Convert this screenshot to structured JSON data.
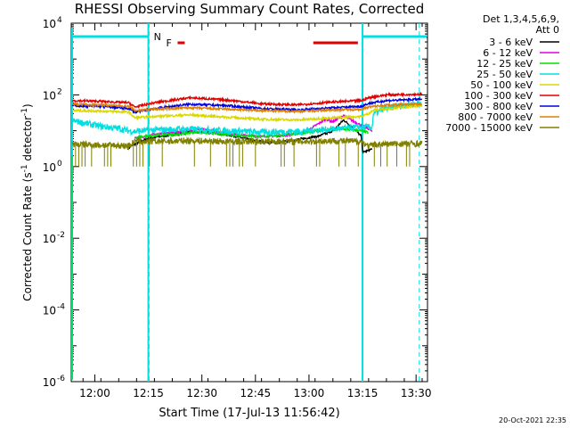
{
  "chart_data": {
    "type": "line",
    "title": "RHESSI Observing Summary Count Rates, Corrected",
    "xlabel": "Start Time (17-Jul-13 11:56:42)",
    "ylabel_parts": [
      "Corrected Count Rate (s",
      "-1",
      " detector",
      "-1",
      ")"
    ],
    "yscale": "log",
    "ylim_exp": [
      -6,
      4
    ],
    "xlim_min": [
      -3.3,
      96.5
    ],
    "x_ticks": [
      {
        "min": 3.3,
        "label": "12:00"
      },
      {
        "min": 18.3,
        "label": "12:15"
      },
      {
        "min": 33.3,
        "label": "12:30"
      },
      {
        "min": 48.3,
        "label": "12:45"
      },
      {
        "min": 63.3,
        "label": "13:00"
      },
      {
        "min": 78.3,
        "label": "13:15"
      },
      {
        "min": 93.3,
        "label": "13:30"
      }
    ],
    "y_ticks": [
      {
        "exp": 4,
        "label": "10",
        "sup": "4"
      },
      {
        "exp": 2,
        "label": "10",
        "sup": "2"
      },
      {
        "exp": 0,
        "label": "10",
        "sup": "0"
      },
      {
        "exp": -2,
        "label": "10",
        "sup": "-2"
      },
      {
        "exp": -4,
        "label": "10",
        "sup": "-4"
      },
      {
        "exp": -6,
        "label": "10",
        "sup": "-6"
      }
    ],
    "legend_header": [
      "Det 1,3,4,5,6,9,",
      "Att 0"
    ],
    "series": [
      {
        "name": "3 - 6 keV",
        "color": "#000000",
        "segments": [
          [
            12.6,
            0.5
          ],
          [
            14,
            0.6
          ],
          [
            18,
            0.78
          ],
          [
            24,
            0.88
          ],
          [
            30,
            0.96
          ],
          [
            36,
            0.95
          ],
          [
            42,
            0.86
          ],
          [
            48,
            0.72
          ],
          [
            54,
            0.66
          ],
          [
            60,
            0.75
          ],
          [
            66,
            0.85
          ],
          [
            70,
            1.0
          ],
          [
            73,
            1.3
          ],
          [
            76,
            1.05
          ],
          [
            77.9,
            0.85
          ],
          [
            78.4,
            0.4
          ],
          [
            80,
            0.45
          ],
          [
            81,
            0.5
          ]
        ]
      },
      {
        "name": "6 - 12 keV",
        "color": "#e000e0",
        "segments": [
          [
            14.5,
            0.78
          ],
          [
            20,
            0.9
          ],
          [
            26,
            0.96
          ],
          [
            32,
            1.05
          ],
          [
            38,
            0.98
          ],
          [
            44,
            0.88
          ],
          [
            50,
            0.84
          ],
          [
            56,
            0.86
          ],
          [
            62,
            0.95
          ],
          [
            66,
            1.2
          ],
          [
            68,
            1.32
          ],
          [
            70,
            1.25
          ],
          [
            73,
            1.42
          ],
          [
            76,
            1.25
          ],
          [
            80,
            1.05
          ],
          [
            81,
            0.98
          ]
        ]
      },
      {
        "name": "12 - 25 keV",
        "color": "#00e000",
        "segments": [
          [
            14.5,
            0.82
          ],
          [
            20,
            0.86
          ],
          [
            26,
            0.9
          ],
          [
            32,
            0.96
          ],
          [
            38,
            0.92
          ],
          [
            44,
            0.86
          ],
          [
            50,
            0.84
          ],
          [
            56,
            0.88
          ],
          [
            62,
            0.94
          ],
          [
            66,
            1.0
          ],
          [
            72,
            1.05
          ],
          [
            78,
            1.0
          ],
          [
            80,
            0.95
          ]
        ]
      },
      {
        "name": "25 - 50 keV",
        "color": "#00e0e0",
        "segments": [
          [
            -3,
            1.28
          ],
          [
            0,
            1.22
          ],
          [
            5,
            1.12
          ],
          [
            10,
            1.06
          ],
          [
            12.8,
            1.0
          ],
          [
            14.5,
            0.98
          ],
          [
            20,
            1.02
          ],
          [
            30,
            1.05
          ],
          [
            40,
            1.0
          ],
          [
            50,
            0.96
          ],
          [
            60,
            0.98
          ],
          [
            70,
            1.05
          ],
          [
            78,
            1.1
          ],
          [
            81,
            1.1
          ],
          [
            81.3,
            1.45
          ],
          [
            84,
            1.6
          ],
          [
            90,
            1.72
          ],
          [
            95,
            1.78
          ]
        ]
      },
      {
        "name": "50 - 100 keV",
        "color": "#d8d800",
        "segments": [
          [
            -3,
            1.56
          ],
          [
            5,
            1.55
          ],
          [
            12.8,
            1.52
          ],
          [
            14.5,
            1.36
          ],
          [
            20,
            1.4
          ],
          [
            30,
            1.44
          ],
          [
            40,
            1.38
          ],
          [
            50,
            1.32
          ],
          [
            60,
            1.3
          ],
          [
            70,
            1.36
          ],
          [
            78,
            1.4
          ],
          [
            80,
            1.48
          ],
          [
            81.5,
            1.58
          ],
          [
            88,
            1.64
          ],
          [
            95,
            1.7
          ]
        ]
      },
      {
        "name": "100 - 300 keV",
        "color": "#e00000",
        "segments": [
          [
            -3,
            1.84
          ],
          [
            5,
            1.82
          ],
          [
            12.8,
            1.78
          ],
          [
            14.5,
            1.66
          ],
          [
            20,
            1.78
          ],
          [
            30,
            1.92
          ],
          [
            40,
            1.86
          ],
          [
            50,
            1.75
          ],
          [
            60,
            1.72
          ],
          [
            70,
            1.8
          ],
          [
            78,
            1.84
          ],
          [
            80,
            1.92
          ],
          [
            85,
            2.0
          ],
          [
            95,
            2.02
          ]
        ]
      },
      {
        "name": "300 - 800 keV",
        "color": "#0000e0",
        "segments": [
          [
            -3,
            1.7
          ],
          [
            5,
            1.68
          ],
          [
            12.8,
            1.62
          ],
          [
            14.5,
            1.52
          ],
          [
            20,
            1.62
          ],
          [
            30,
            1.74
          ],
          [
            40,
            1.7
          ],
          [
            50,
            1.62
          ],
          [
            60,
            1.58
          ],
          [
            70,
            1.64
          ],
          [
            78,
            1.68
          ],
          [
            80,
            1.76
          ],
          [
            85,
            1.84
          ],
          [
            95,
            1.88
          ]
        ]
      },
      {
        "name": "800 - 7000 keV",
        "color": "#e08000",
        "segments": [
          [
            -3,
            1.74
          ],
          [
            5,
            1.72
          ],
          [
            12.8,
            1.68
          ],
          [
            14.5,
            1.56
          ],
          [
            20,
            1.6
          ],
          [
            30,
            1.64
          ],
          [
            40,
            1.6
          ],
          [
            50,
            1.56
          ],
          [
            60,
            1.54
          ],
          [
            70,
            1.58
          ],
          [
            78,
            1.6
          ],
          [
            80,
            1.66
          ],
          [
            85,
            1.72
          ],
          [
            95,
            1.74
          ]
        ]
      },
      {
        "name": "7000 - 15000 keV",
        "color": "#808000",
        "segments": [
          [
            -3,
            0.62
          ],
          [
            5,
            0.6
          ],
          [
            12.8,
            0.58
          ],
          [
            14.5,
            0.7
          ],
          [
            20,
            0.7
          ],
          [
            30,
            0.72
          ],
          [
            40,
            0.7
          ],
          [
            50,
            0.7
          ],
          [
            60,
            0.7
          ],
          [
            70,
            0.72
          ],
          [
            78,
            0.7
          ],
          [
            80,
            0.56
          ],
          [
            82,
            0.62
          ],
          [
            90,
            0.64
          ],
          [
            95,
            0.64
          ]
        ]
      }
    ],
    "night_intervals": [
      [
        -3.3,
        18.3
      ],
      [
        78.3,
        96.5
      ]
    ],
    "saa_label": "N",
    "flare_label": "F",
    "flare_bars": [
      [
        26.5,
        28.5
      ],
      [
        64.5,
        77
      ]
    ]
  },
  "footer": {
    "date_stamp": "20-Oct-2021 22:35"
  }
}
